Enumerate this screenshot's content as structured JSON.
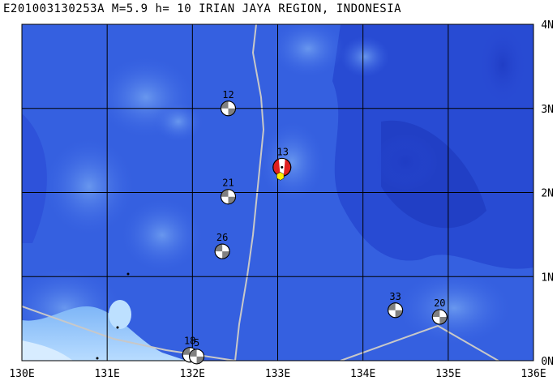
{
  "header": {
    "title": "E201003130253A M=5.9 h= 10 IRIAN JAYA REGION, INDONESIA"
  },
  "map": {
    "lon_range": [
      130,
      136
    ],
    "lat_range": [
      0,
      4
    ],
    "x_ticks": [
      "130E",
      "131E",
      "132E",
      "133E",
      "134E",
      "135E",
      "136E"
    ],
    "y_ticks": [
      "0N",
      "1N",
      "2N",
      "3N",
      "4N"
    ],
    "colors": {
      "deep_ocean": "#2a4ad6",
      "mid_ocean": "#3c66e6",
      "shallow": "#6fa8f2",
      "coast": "#a8d4ff",
      "grid": "#000000",
      "plate_boundary": "#c8c8c8",
      "main_event": "#e02020",
      "epicenter": "#ffee00"
    },
    "main_event": {
      "label": "13",
      "lon": 133.05,
      "lat": 2.3
    },
    "events": [
      {
        "label": "12",
        "lon": 132.42,
        "lat": 3.0
      },
      {
        "label": "21",
        "lon": 132.42,
        "lat": 1.95
      },
      {
        "label": "26",
        "lon": 132.35,
        "lat": 1.3
      },
      {
        "label": "33",
        "lon": 134.38,
        "lat": 0.6
      },
      {
        "label": "20",
        "lon": 134.9,
        "lat": 0.52
      },
      {
        "label": "18",
        "lon": 131.97,
        "lat": 0.07
      },
      {
        "label": "5",
        "lon": 132.05,
        "lat": 0.05
      }
    ]
  }
}
